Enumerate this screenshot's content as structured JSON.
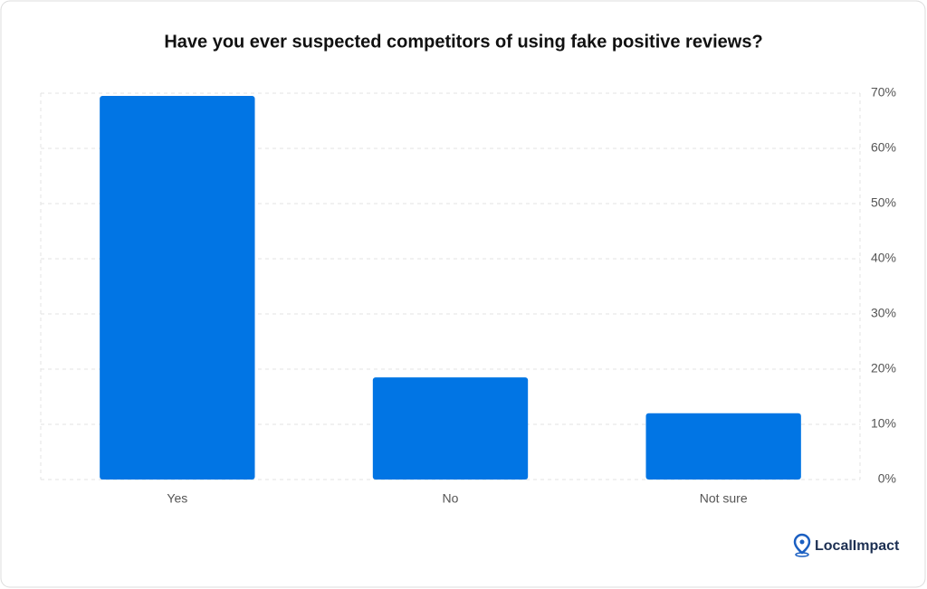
{
  "chart_data": {
    "type": "bar",
    "title": "Have you ever suspected competitors of using fake positive reviews?",
    "categories": [
      "Yes",
      "No",
      "Not sure"
    ],
    "values": [
      69.5,
      18.5,
      12
    ],
    "color": "#0175e4",
    "ylim": [
      0,
      70
    ],
    "yticks": [
      {
        "value": 0,
        "label": "0%"
      },
      {
        "value": 10,
        "label": "10%"
      },
      {
        "value": 20,
        "label": "20%"
      },
      {
        "value": 30,
        "label": "30%"
      },
      {
        "value": 40,
        "label": "40%"
      },
      {
        "value": 50,
        "label": "50%"
      },
      {
        "value": 60,
        "label": "60%"
      },
      {
        "value": 70,
        "label": "70%"
      }
    ],
    "grid": true,
    "logo": "LocalImpact"
  }
}
